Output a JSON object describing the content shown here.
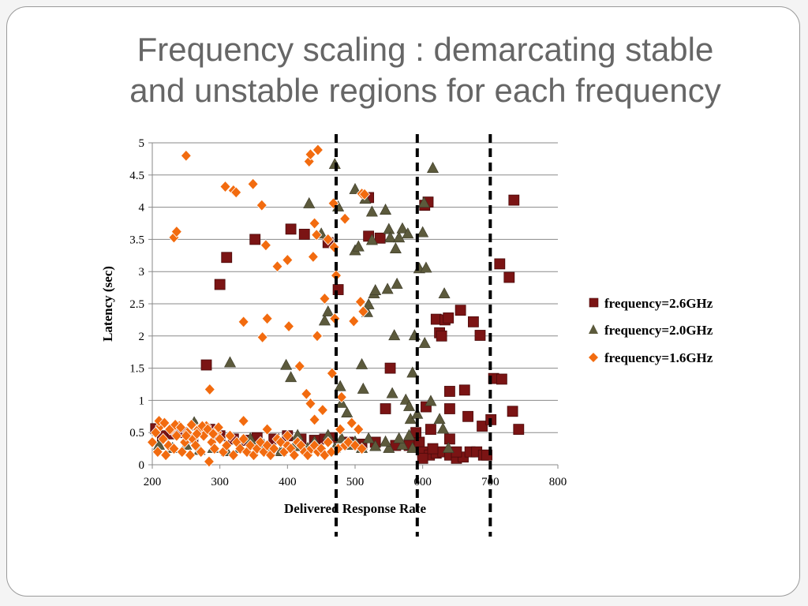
{
  "slide": {
    "title_line1": "Frequency scaling : demarcating stable",
    "title_line2": "and unstable regions for each frequency"
  },
  "chart_data": {
    "type": "scatter",
    "title": "",
    "xlabel": "Delivered Response Rate",
    "ylabel": "Latency (sec)",
    "xlim": [
      200,
      800
    ],
    "ylim": [
      0,
      5
    ],
    "xticks": [
      200,
      300,
      400,
      500,
      600,
      700,
      800
    ],
    "yticks": [
      0,
      0.5,
      1,
      1.5,
      2,
      2.5,
      3,
      3.5,
      4,
      4.5,
      5
    ],
    "grid": "horizontal",
    "legend": "right",
    "vlines": [
      {
        "x": 472,
        "style": "dashed"
      },
      {
        "x": 592,
        "style": "dashed"
      },
      {
        "x": 700,
        "style": "dashed"
      }
    ],
    "series": [
      {
        "name": "frequency=2.6GHz",
        "marker": "square",
        "color": "#7b1414",
        "points": [
          [
            205,
            0.56
          ],
          [
            215,
            0.45
          ],
          [
            230,
            0.48
          ],
          [
            245,
            0.5
          ],
          [
            260,
            0.42
          ],
          [
            270,
            0.52
          ],
          [
            285,
            0.55
          ],
          [
            300,
            0.45
          ],
          [
            320,
            0.4
          ],
          [
            340,
            0.38
          ],
          [
            355,
            0.42
          ],
          [
            380,
            0.4
          ],
          [
            400,
            0.45
          ],
          [
            420,
            0.4
          ],
          [
            440,
            0.38
          ],
          [
            455,
            0.4
          ],
          [
            465,
            0.42
          ],
          [
            490,
            0.35
          ],
          [
            510,
            0.32
          ],
          [
            530,
            0.35
          ],
          [
            560,
            0.3
          ],
          [
            580,
            0.3
          ],
          [
            595,
            0.35
          ],
          [
            600,
            0.2
          ],
          [
            610,
            0.15
          ],
          [
            620,
            0.18
          ],
          [
            630,
            0.2
          ],
          [
            640,
            0.15
          ],
          [
            650,
            0.1
          ],
          [
            660,
            0.12
          ],
          [
            670,
            0.2
          ],
          [
            680,
            0.2
          ],
          [
            690,
            0.15
          ],
          [
            600,
            0.1
          ],
          [
            615,
            0.25
          ],
          [
            280,
            1.55
          ],
          [
            300,
            2.8
          ],
          [
            310,
            3.22
          ],
          [
            352,
            3.5
          ],
          [
            405,
            3.66
          ],
          [
            425,
            3.58
          ],
          [
            460,
            3.45
          ],
          [
            475,
            2.72
          ],
          [
            520,
            4.15
          ],
          [
            520,
            3.55
          ],
          [
            537,
            3.52
          ],
          [
            545,
            0.87
          ],
          [
            552,
            1.5
          ],
          [
            590,
            0.5
          ],
          [
            603,
            4.03
          ],
          [
            608,
            4.08
          ],
          [
            605,
            0.9
          ],
          [
            612,
            0.55
          ],
          [
            620,
            2.26
          ],
          [
            625,
            2.05
          ],
          [
            628,
            2.0
          ],
          [
            633,
            2.25
          ],
          [
            638,
            2.28
          ],
          [
            640,
            1.14
          ],
          [
            640,
            0.87
          ],
          [
            640,
            0.4
          ],
          [
            650,
            0.2
          ],
          [
            656,
            2.4
          ],
          [
            662,
            1.16
          ],
          [
            667,
            0.75
          ],
          [
            675,
            2.22
          ],
          [
            685,
            2.01
          ],
          [
            688,
            0.6
          ],
          [
            695,
            0.15
          ],
          [
            701,
            0.7
          ],
          [
            705,
            1.34
          ],
          [
            714,
            3.12
          ],
          [
            717,
            1.33
          ],
          [
            728,
            2.91
          ],
          [
            733,
            0.83
          ],
          [
            735,
            4.11
          ],
          [
            742,
            0.55
          ]
        ]
      },
      {
        "name": "frequency=2.0GHz",
        "marker": "triangle",
        "color": "#5c5a3c",
        "points": [
          [
            210,
            0.3
          ],
          [
            230,
            0.25
          ],
          [
            250,
            0.3
          ],
          [
            270,
            0.22
          ],
          [
            290,
            0.25
          ],
          [
            310,
            0.2
          ],
          [
            330,
            0.25
          ],
          [
            350,
            0.3
          ],
          [
            370,
            0.25
          ],
          [
            390,
            0.2
          ],
          [
            410,
            0.28
          ],
          [
            430,
            0.25
          ],
          [
            450,
            0.22
          ],
          [
            470,
            0.25
          ],
          [
            490,
            0.3
          ],
          [
            510,
            0.25
          ],
          [
            530,
            0.28
          ],
          [
            550,
            0.25
          ],
          [
            570,
            0.3
          ],
          [
            585,
            0.25
          ],
          [
            262,
            0.65
          ],
          [
            265,
            0.6
          ],
          [
            345,
            0.4
          ],
          [
            365,
            0.3
          ],
          [
            415,
            0.45
          ],
          [
            440,
            0.35
          ],
          [
            460,
            0.45
          ],
          [
            480,
            0.4
          ],
          [
            500,
            0.35
          ],
          [
            520,
            0.4
          ],
          [
            545,
            0.35
          ],
          [
            565,
            0.4
          ],
          [
            580,
            0.45
          ],
          [
            315,
            1.58
          ],
          [
            398,
            1.54
          ],
          [
            405,
            1.35
          ],
          [
            455,
            2.23
          ],
          [
            460,
            2.37
          ],
          [
            470,
            4.66
          ],
          [
            475,
            4.0
          ],
          [
            478,
            1.21
          ],
          [
            480,
            0.95
          ],
          [
            488,
            0.8
          ],
          [
            500,
            3.32
          ],
          [
            500,
            4.27
          ],
          [
            505,
            3.38
          ],
          [
            510,
            1.55
          ],
          [
            512,
            1.17
          ],
          [
            515,
            4.12
          ],
          [
            518,
            2.36
          ],
          [
            520,
            2.48
          ],
          [
            525,
            3.48
          ],
          [
            525,
            3.92
          ],
          [
            528,
            2.65
          ],
          [
            530,
            2.7
          ],
          [
            545,
            3.95
          ],
          [
            548,
            2.72
          ],
          [
            550,
            3.65
          ],
          [
            552,
            3.52
          ],
          [
            555,
            1.1
          ],
          [
            558,
            2.0
          ],
          [
            560,
            3.35
          ],
          [
            562,
            2.8
          ],
          [
            565,
            3.52
          ],
          [
            570,
            3.66
          ],
          [
            575,
            1.0
          ],
          [
            578,
            3.58
          ],
          [
            580,
            0.9
          ],
          [
            582,
            0.7
          ],
          [
            585,
            1.42
          ],
          [
            588,
            2.0
          ],
          [
            592,
            0.78
          ],
          [
            595,
            3.04
          ],
          [
            600,
            3.6
          ],
          [
            602,
            4.06
          ],
          [
            603,
            1.88
          ],
          [
            605,
            3.05
          ],
          [
            612,
            0.98
          ],
          [
            615,
            4.6
          ],
          [
            625,
            0.7
          ],
          [
            632,
            2.65
          ],
          [
            630,
            0.55
          ],
          [
            638,
            0.25
          ],
          [
            432,
            4.05
          ],
          [
            450,
            3.58
          ]
        ]
      },
      {
        "name": "frequency=1.6GHz",
        "marker": "diamond",
        "color": "#f26b0f",
        "points": [
          [
            200,
            0.35
          ],
          [
            205,
            0.5
          ],
          [
            208,
            0.2
          ],
          [
            212,
            0.6
          ],
          [
            216,
            0.4
          ],
          [
            220,
            0.15
          ],
          [
            224,
            0.3
          ],
          [
            228,
            0.55
          ],
          [
            232,
            0.25
          ],
          [
            236,
            0.45
          ],
          [
            240,
            0.6
          ],
          [
            244,
            0.2
          ],
          [
            248,
            0.35
          ],
          [
            252,
            0.5
          ],
          [
            256,
            0.15
          ],
          [
            260,
            0.4
          ],
          [
            264,
            0.3
          ],
          [
            268,
            0.55
          ],
          [
            272,
            0.2
          ],
          [
            276,
            0.45
          ],
          [
            280,
            0.6
          ],
          [
            284,
            0.05
          ],
          [
            288,
            0.35
          ],
          [
            292,
            0.25
          ],
          [
            296,
            0.5
          ],
          [
            300,
            0.4
          ],
          [
            305,
            0.2
          ],
          [
            310,
            0.3
          ],
          [
            315,
            0.45
          ],
          [
            320,
            0.15
          ],
          [
            325,
            0.35
          ],
          [
            330,
            0.25
          ],
          [
            335,
            0.4
          ],
          [
            340,
            0.2
          ],
          [
            345,
            0.3
          ],
          [
            350,
            0.15
          ],
          [
            355,
            0.25
          ],
          [
            360,
            0.35
          ],
          [
            365,
            0.2
          ],
          [
            370,
            0.3
          ],
          [
            375,
            0.15
          ],
          [
            380,
            0.25
          ],
          [
            385,
            0.4
          ],
          [
            390,
            0.35
          ],
          [
            395,
            0.2
          ],
          [
            400,
            0.3
          ],
          [
            405,
            0.25
          ],
          [
            410,
            0.15
          ],
          [
            415,
            0.35
          ],
          [
            420,
            0.3
          ],
          [
            425,
            0.2
          ],
          [
            430,
            0.15
          ],
          [
            435,
            0.25
          ],
          [
            440,
            0.3
          ],
          [
            445,
            0.2
          ],
          [
            450,
            0.25
          ],
          [
            455,
            0.15
          ],
          [
            460,
            0.35
          ],
          [
            465,
            0.2
          ],
          [
            475,
            0.25
          ],
          [
            485,
            0.3
          ],
          [
            490,
            0.35
          ],
          [
            500,
            0.3
          ],
          [
            510,
            0.25
          ],
          [
            210,
            0.68
          ],
          [
            218,
            0.65
          ],
          [
            226,
            0.55
          ],
          [
            234,
            0.62
          ],
          [
            242,
            0.58
          ],
          [
            250,
            0.45
          ],
          [
            258,
            0.62
          ],
          [
            266,
            0.48
          ],
          [
            274,
            0.6
          ],
          [
            282,
            0.55
          ],
          [
            290,
            0.48
          ],
          [
            298,
            0.58
          ],
          [
            335,
            0.68
          ],
          [
            370,
            0.55
          ],
          [
            400,
            0.45
          ],
          [
            440,
            0.7
          ],
          [
            232,
            3.53
          ],
          [
            236,
            3.62
          ],
          [
            250,
            4.8
          ],
          [
            285,
            1.17
          ],
          [
            308,
            4.32
          ],
          [
            320,
            4.26
          ],
          [
            324,
            4.23
          ],
          [
            335,
            2.22
          ],
          [
            349,
            4.36
          ],
          [
            362,
            4.03
          ],
          [
            363,
            1.98
          ],
          [
            368,
            3.41
          ],
          [
            370,
            2.27
          ],
          [
            385,
            3.08
          ],
          [
            400,
            3.18
          ],
          [
            402,
            2.15
          ],
          [
            418,
            1.53
          ],
          [
            428,
            1.1
          ],
          [
            432,
            4.71
          ],
          [
            434,
            4.82
          ],
          [
            434,
            0.95
          ],
          [
            438,
            3.23
          ],
          [
            440,
            3.75
          ],
          [
            443,
            3.57
          ],
          [
            444,
            2.0
          ],
          [
            445,
            4.89
          ],
          [
            452,
            0.85
          ],
          [
            455,
            2.58
          ],
          [
            460,
            3.5
          ],
          [
            466,
            1.42
          ],
          [
            468,
            4.06
          ],
          [
            469,
            3.38
          ],
          [
            470,
            2.27
          ],
          [
            472,
            2.94
          ],
          [
            478,
            0.55
          ],
          [
            480,
            1.05
          ],
          [
            485,
            3.82
          ],
          [
            495,
            0.65
          ],
          [
            498,
            2.23
          ],
          [
            505,
            0.55
          ],
          [
            508,
            2.53
          ],
          [
            510,
            4.21
          ],
          [
            512,
            2.38
          ],
          [
            514,
            4.2
          ]
        ]
      }
    ]
  }
}
